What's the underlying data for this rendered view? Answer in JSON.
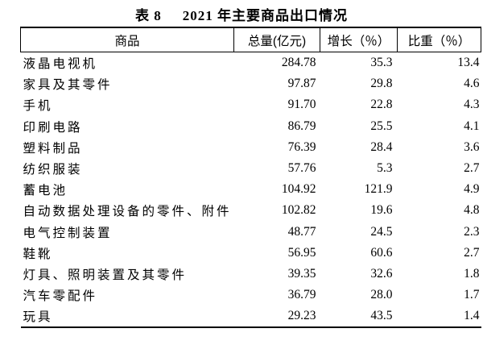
{
  "title": {
    "prefix": "表 8",
    "text": "2021 年主要商品出口情况"
  },
  "table": {
    "columns": [
      "商品",
      "总量(亿元)",
      "增长（％）",
      "比重（％）"
    ],
    "rows": [
      {
        "name": "液晶电视机",
        "total": "284.78",
        "growth": "35.3",
        "share": "13.4"
      },
      {
        "name": "家具及其零件",
        "total": "97.87",
        "growth": "29.8",
        "share": "4.6"
      },
      {
        "name": "手机",
        "total": "91.70",
        "growth": "22.8",
        "share": "4.3"
      },
      {
        "name": "印刷电路",
        "total": "86.79",
        "growth": "25.5",
        "share": "4.1"
      },
      {
        "name": "塑料制品",
        "total": "76.39",
        "growth": "28.4",
        "share": "3.6"
      },
      {
        "name": "纺织服装",
        "total": "57.76",
        "growth": "5.3",
        "share": "2.7"
      },
      {
        "name": "蓄电池",
        "total": "104.92",
        "growth": "121.9",
        "share": "4.9"
      },
      {
        "name": "自动数据处理设备的零件、附件",
        "total": "102.82",
        "growth": "19.6",
        "share": "4.8"
      },
      {
        "name": "电气控制装置",
        "total": "48.77",
        "growth": "24.5",
        "share": "2.3"
      },
      {
        "name": "鞋靴",
        "total": "56.95",
        "growth": "60.6",
        "share": "2.7"
      },
      {
        "name": "灯具、照明装置及其零件",
        "total": "39.35",
        "growth": "32.6",
        "share": "1.8"
      },
      {
        "name": "汽车零配件",
        "total": "36.79",
        "growth": "28.0",
        "share": "1.7"
      },
      {
        "name": "玩具",
        "total": "29.23",
        "growth": "43.5",
        "share": "1.4"
      }
    ]
  }
}
